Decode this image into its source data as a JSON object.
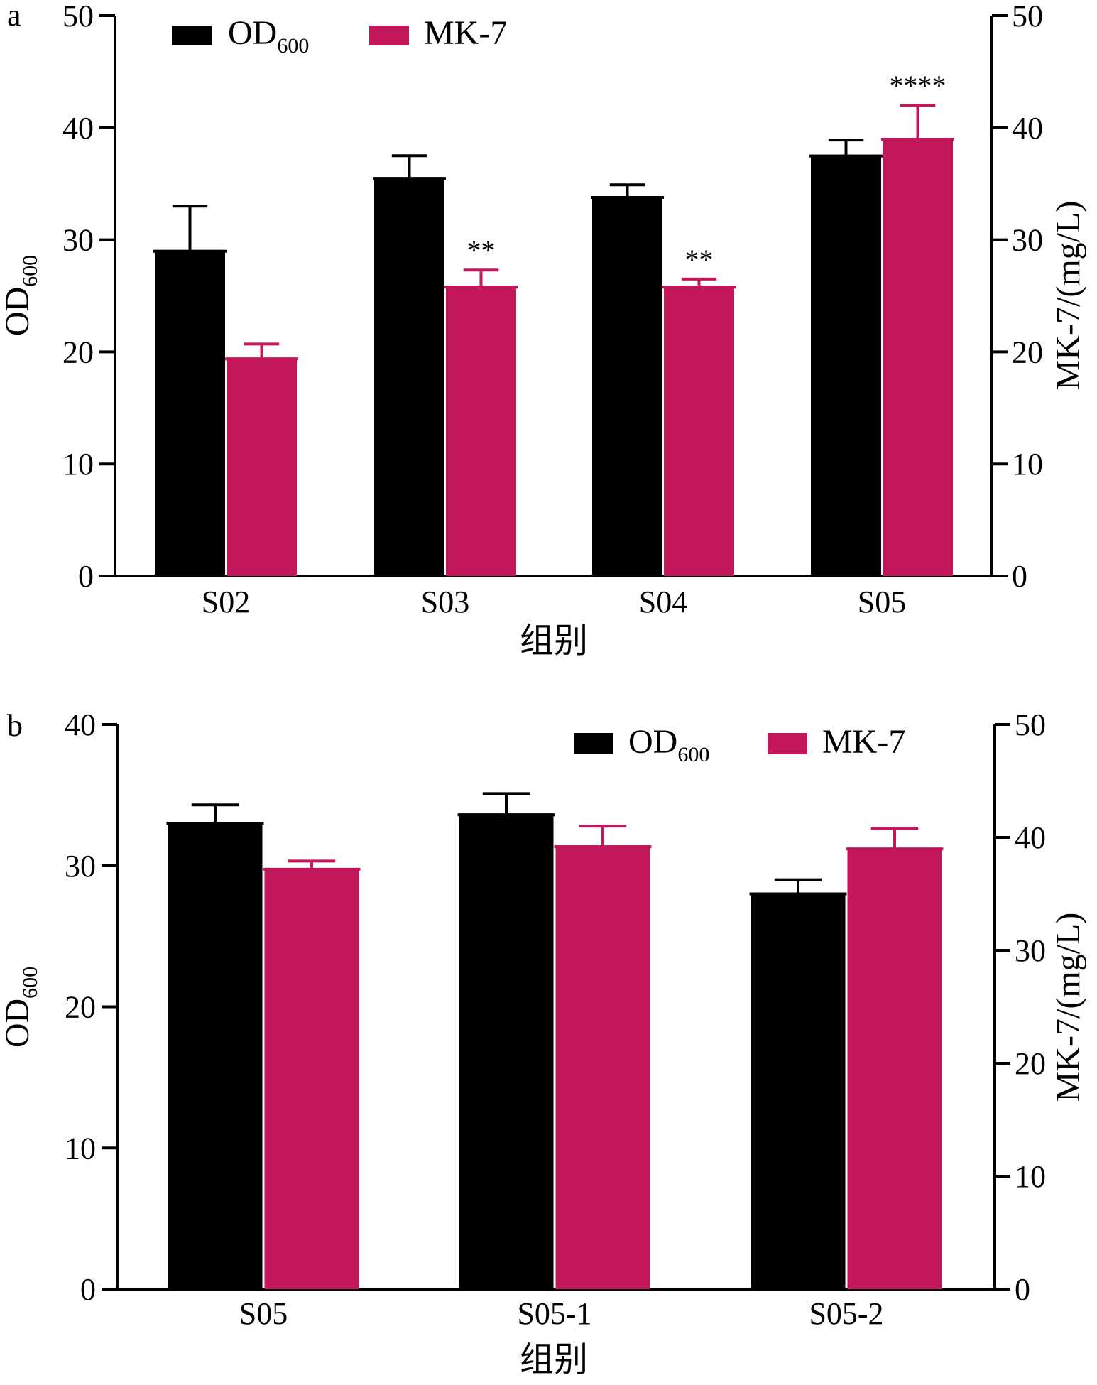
{
  "colors": {
    "od600": "#000000",
    "mk7": "#C2185B"
  },
  "chart_data": [
    {
      "panel": "a",
      "type": "bar",
      "categories": [
        "S02",
        "S03",
        "S04",
        "S05"
      ],
      "xlabel": "组别",
      "ylabel": "OD",
      "ylabel_sub": "600",
      "y2label": "MK-7/(mg/L)",
      "ylim": [
        0,
        50
      ],
      "y2lim": [
        0,
        50
      ],
      "yticks": [
        "0",
        "10",
        "20",
        "30",
        "40",
        "50"
      ],
      "y2ticks": [
        "0",
        "10",
        "20",
        "30",
        "40",
        "50"
      ],
      "legend": {
        "position": "top-left",
        "od_label": "OD",
        "od_sub": "600",
        "mk_label": "MK-7"
      },
      "series": [
        {
          "name": "OD600",
          "axis": "left",
          "values": [
            29.1,
            35.6,
            33.9,
            37.6
          ],
          "error_upper": [
            33.0,
            37.5,
            34.9,
            38.9
          ]
        },
        {
          "name": "MK-7",
          "axis": "right",
          "values": [
            19.5,
            25.9,
            25.9,
            39.1
          ],
          "error_upper": [
            20.7,
            27.3,
            26.5,
            42.0
          ]
        }
      ],
      "annotations": [
        "",
        "**",
        "**",
        "****"
      ]
    },
    {
      "panel": "b",
      "type": "bar",
      "categories": [
        "S05",
        "S05-1",
        "S05-2"
      ],
      "xlabel": "组别",
      "ylabel": "OD",
      "ylabel_sub": "600",
      "y2label": "MK-7/(mg/L)",
      "ylim": [
        0,
        40
      ],
      "y2lim": [
        0,
        50
      ],
      "yticks": [
        "0",
        "10",
        "20",
        "30",
        "40"
      ],
      "y2ticks": [
        "0",
        "10",
        "20",
        "30",
        "40",
        "50"
      ],
      "legend": {
        "position": "top-right",
        "od_label": "OD",
        "od_sub": "600",
        "mk_label": "MK-7"
      },
      "series": [
        {
          "name": "OD600",
          "axis": "left",
          "values": [
            33.1,
            33.7,
            28.1
          ],
          "error_upper": [
            34.3,
            35.1,
            29.0
          ]
        },
        {
          "name": "MK-7",
          "axis": "right",
          "values": [
            37.3,
            39.3,
            39.1
          ],
          "error_upper": [
            37.9,
            41.0,
            40.8
          ]
        }
      ],
      "annotations": [
        "",
        "",
        ""
      ]
    }
  ]
}
